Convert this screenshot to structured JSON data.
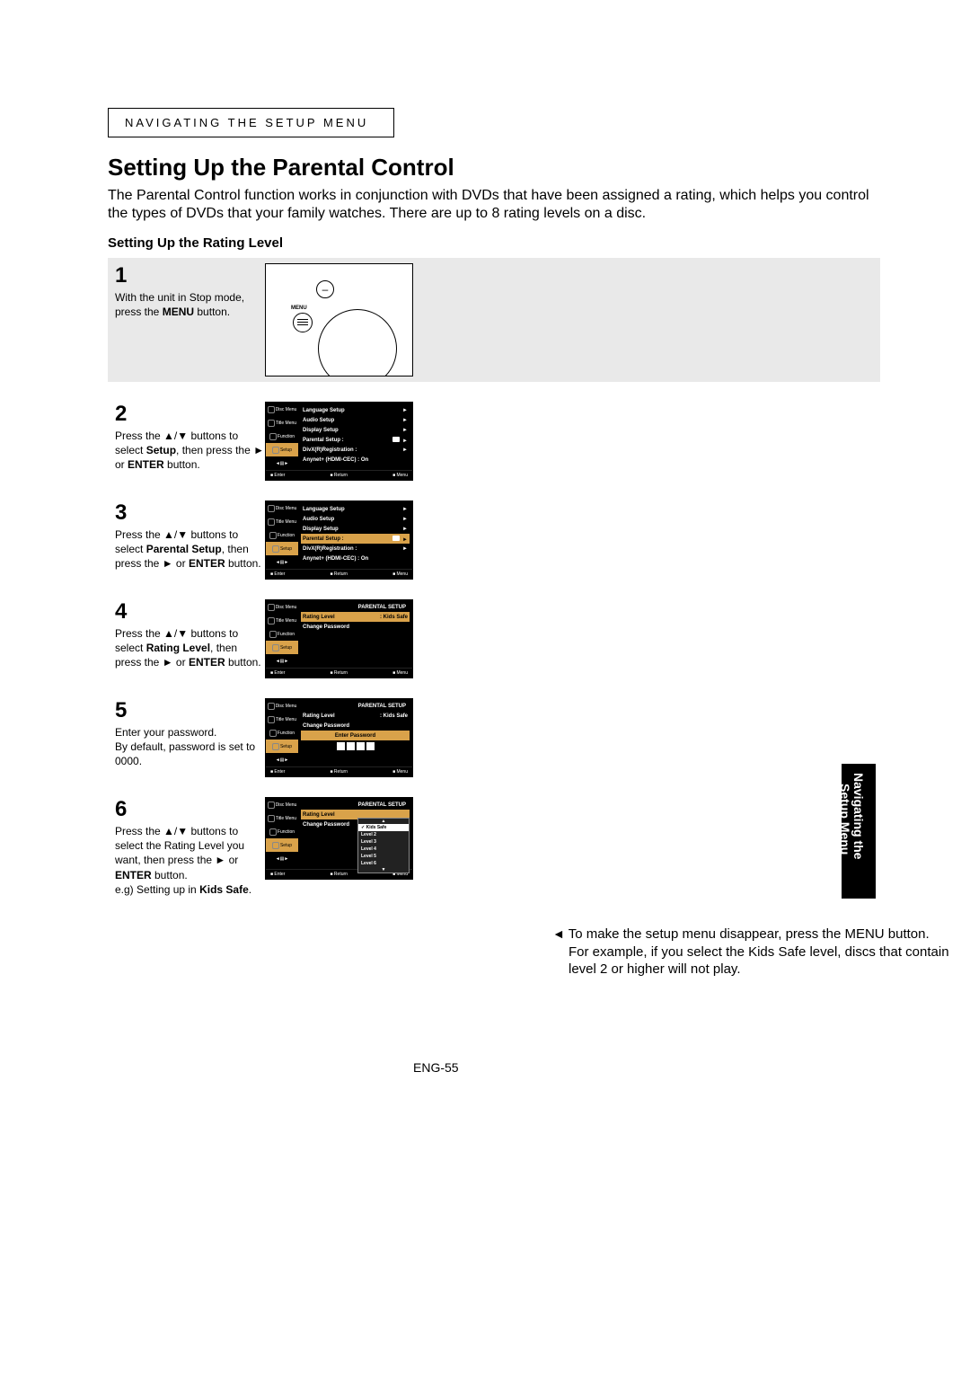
{
  "chapter_label": "NAVIGATING THE SETUP MENU",
  "heading": "Setting Up the Parental Control",
  "lead": "The Parental Control function works in conjunction with DVDs that have been assigned a rating, which helps you control the types of DVDs that your family watches. There are up to 8 rating levels on a disc.",
  "subhead": "Setting Up the Rating Level",
  "steps": {
    "s1": {
      "num": "1",
      "a": "With the unit in Stop mode, press the ",
      "b": "MENU",
      "c": " button."
    },
    "s2": {
      "num": "2",
      "a": "Press the ",
      "arr1": "▲/▼",
      "b": " buttons to select ",
      "bold1": "Setup",
      "c": ", then press the ",
      "arr2": "►",
      "d": " or ",
      "bold2": "ENTER",
      "e": " button."
    },
    "s3": {
      "num": "3",
      "a": "Press the ",
      "arr1": "▲/▼",
      "b": " buttons to select ",
      "bold1": "Parental Setup",
      "c": ", then press the ",
      "arr2": "►",
      "d": " or ",
      "bold2": "ENTER",
      "e": " button."
    },
    "s4": {
      "num": "4",
      "a": "Press the ",
      "arr1": "▲/▼",
      "b": " buttons to select ",
      "bold1": "Rating Level",
      "c": ", then press the ",
      "arr2": "►",
      "d": " or ",
      "bold2": "ENTER",
      "e": " button."
    },
    "s5": {
      "num": "5",
      "a": "Enter your password.",
      "b": "By default, password is set to 0000."
    },
    "s6": {
      "num": "6",
      "a": "Press the ",
      "arr1": "▲/▼",
      "b": " buttons to select the Rating Level you want, then press the ",
      "arr2": "►",
      "c": " or ",
      "bold1": "ENTER",
      "d": " button.",
      "eg": "e.g) Setting up in ",
      "bold2": "Kids Safe",
      "dot": "."
    }
  },
  "menus": {
    "sidebar": [
      "Disc Menu",
      "Title Menu",
      "Function",
      "Setup"
    ],
    "root": {
      "items": [
        {
          "label": "Language Setup",
          "arrow": "►"
        },
        {
          "label": "Audio Setup",
          "arrow": "►"
        },
        {
          "label": "Display Setup",
          "arrow": "►"
        },
        {
          "label": "Parental Setup :",
          "arrow": "►",
          "lock": true
        },
        {
          "label": "DivX(R)Registration :",
          "arrow": "►"
        },
        {
          "label": "Anynet+ (HDMI-CEC) : On",
          "arrow": ""
        }
      ]
    },
    "parental": {
      "title": "PARENTAL SETUP",
      "items": [
        {
          "label": "Rating Level",
          "value": ": Kids Safe"
        },
        {
          "label": "Change Password",
          "value": ""
        }
      ],
      "enter_pw": "Enter Password"
    },
    "levels": [
      "Kids Safe",
      "Level 2",
      "Level 3",
      "Level 4",
      "Level 5",
      "Level 6"
    ],
    "footer": {
      "enter": "Enter",
      "return": "Return",
      "menu": "Menu"
    }
  },
  "remote": {
    "menu_label": "MENU"
  },
  "note": {
    "arrow": "◄",
    "line1": "To make the setup menu disappear, press the MENU button.",
    "line2": "For example, if you select the Kids Safe level, discs that contain level 2 or higher will not play."
  },
  "side_tab": {
    "line1": "Navigating the",
    "line2": "Setup Menu"
  },
  "page_number": "ENG-55",
  "colors": {
    "highlight": "#d9a24a",
    "black": "#000000",
    "screen_bg": "#000000"
  }
}
